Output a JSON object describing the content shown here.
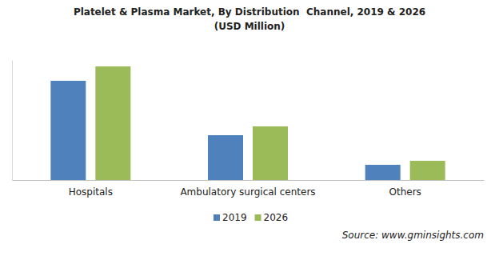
{
  "chart_data": {
    "type": "bar",
    "title": "Platelet & Plasma Market, By Distribution  Channel, 2019 & 2026",
    "subtitle": "(USD Million)",
    "categories": [
      "Hospitals",
      "Ambulatory surgical centers",
      "Others"
    ],
    "series": [
      {
        "name": "2019",
        "color": "#4f81bd",
        "values": [
          1240,
          560,
          190
        ]
      },
      {
        "name": "2026",
        "color": "#9bbb59",
        "values": [
          1420,
          670,
          240
        ]
      }
    ],
    "ylim": [
      0,
      1500
    ],
    "yticks": [],
    "tick_labels": "x",
    "grid": false,
    "legend": "bottom",
    "data_labels": false,
    "source": "Source: www.gminsights.com"
  }
}
